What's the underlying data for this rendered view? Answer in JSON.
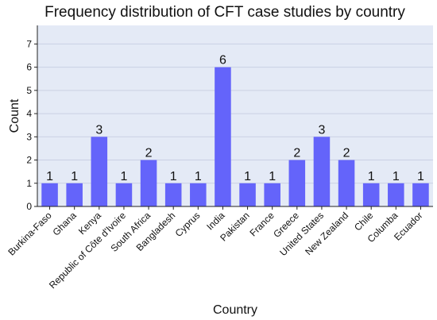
{
  "chart_data": {
    "type": "bar",
    "title": "Frequency distribution of CFT case studies by country",
    "xlabel": "Country",
    "ylabel": "Count",
    "categories": [
      "Burkina-Faso",
      "Ghana",
      "Kenya",
      "Republic of Côte d'Ivoire",
      "South Africa",
      "Bangladesh",
      "Cyprus",
      "India",
      "Pakistan",
      "France",
      "Greece",
      "United States",
      "New Zealand",
      "Chile",
      "Columba",
      "Ecuador"
    ],
    "values": [
      1,
      1,
      3,
      1,
      2,
      1,
      1,
      6,
      1,
      1,
      2,
      3,
      2,
      1,
      1,
      1
    ],
    "yticks": [
      "0",
      "1",
      "2",
      "3",
      "4",
      "5",
      "6",
      "7"
    ],
    "ylim": [
      0,
      7.8
    ],
    "grid": true,
    "colors": {
      "bar": "#6464fa",
      "plot_background": "#e4eaf6",
      "grid": "#c9d0e3"
    }
  }
}
